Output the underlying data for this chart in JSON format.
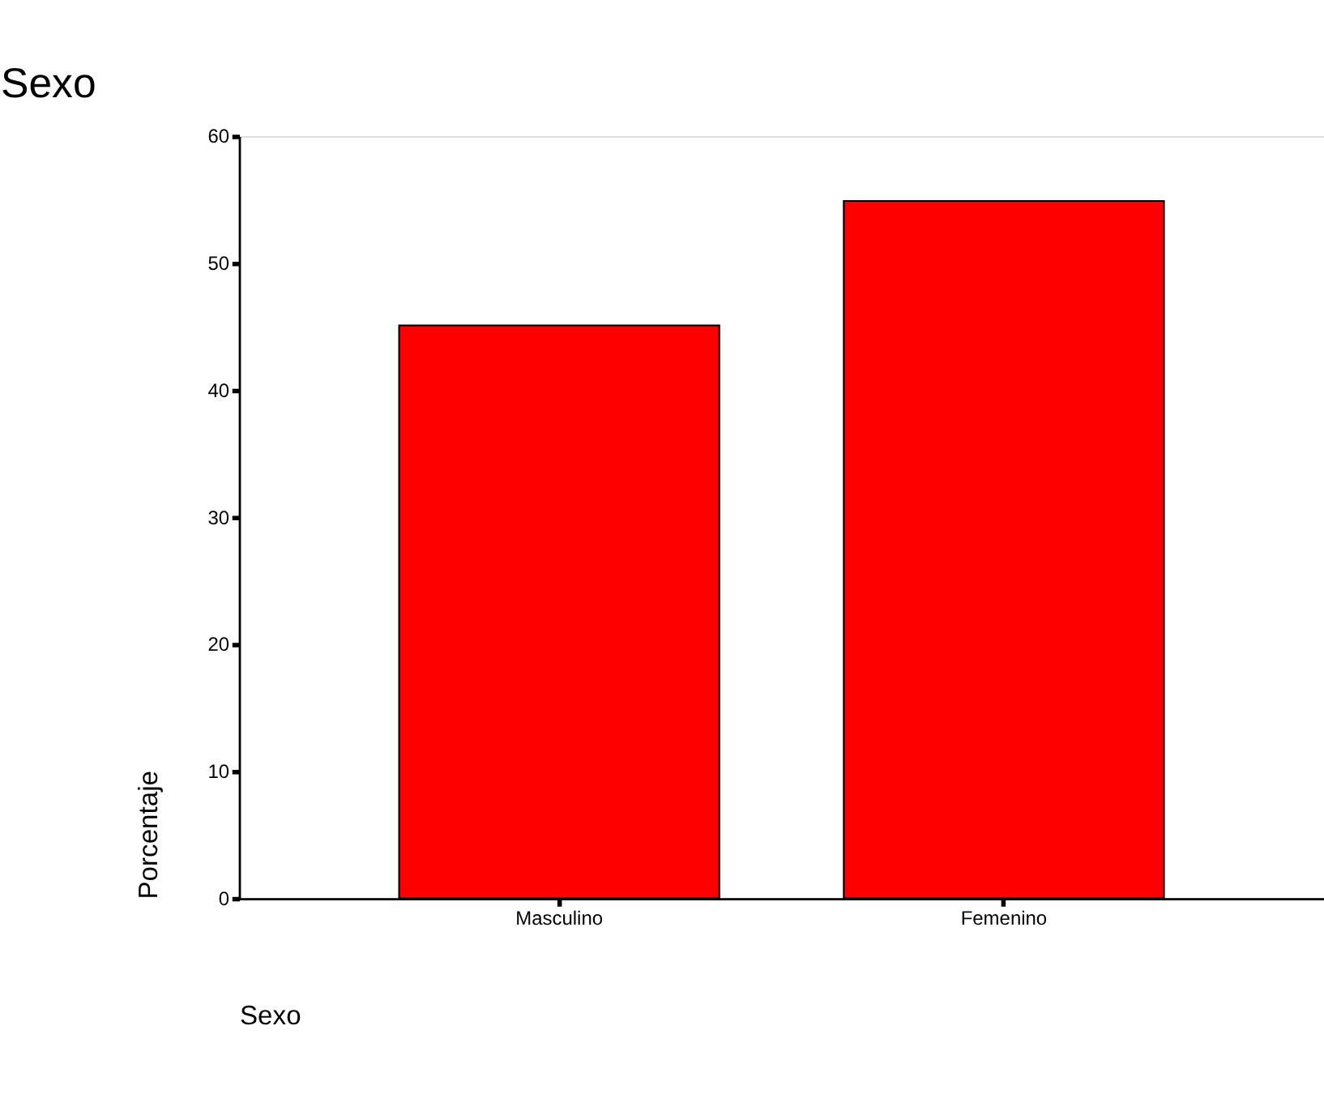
{
  "chart_data": {
    "type": "bar",
    "title": "Sexo",
    "xlabel": "Sexo",
    "ylabel": "Porcentaje",
    "categories": [
      "Masculino",
      "Femenino"
    ],
    "values": [
      45.1,
      54.9
    ],
    "color": "#ff0000",
    "ylim": [
      0,
      60
    ],
    "yticks": [
      0,
      10,
      20,
      30,
      40,
      50,
      60
    ],
    "grid": false
  }
}
